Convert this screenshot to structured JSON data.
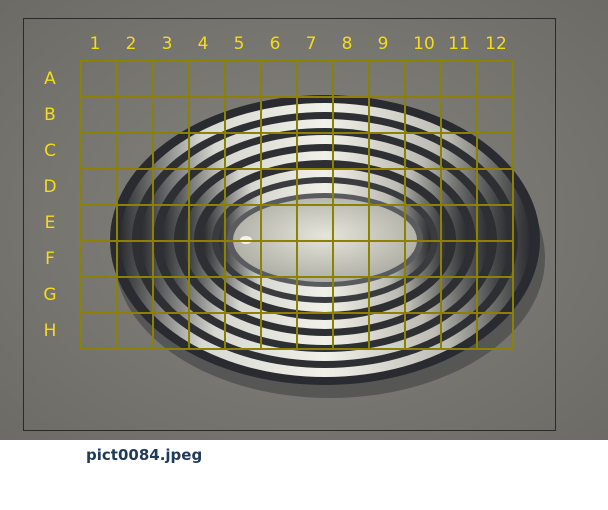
{
  "image": {
    "filename": "pict0084.jpeg",
    "background_color": "#77766f"
  },
  "grid": {
    "columns": [
      "1",
      "2",
      "3",
      "4",
      "5",
      "6",
      "7",
      "8",
      "9",
      "10",
      "11",
      "12"
    ],
    "rows": [
      "A",
      "B",
      "C",
      "D",
      "E",
      "F",
      "G",
      "H"
    ],
    "label_color": "#f5dc1a",
    "line_color": "#8a8200"
  }
}
